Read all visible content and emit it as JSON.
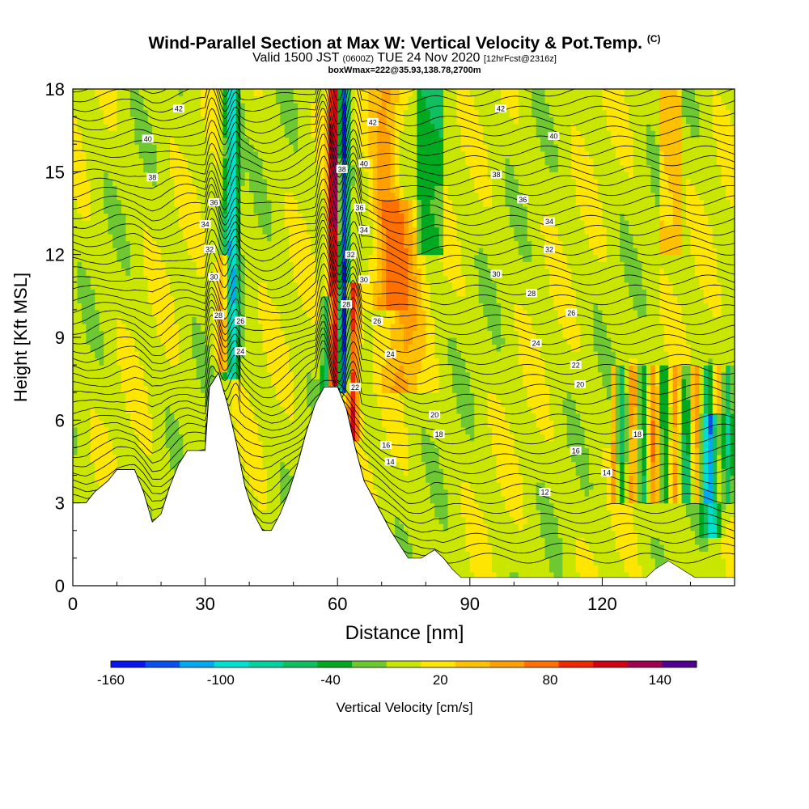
{
  "title": {
    "main": "Wind-Parallel Section at Max W: Vertical Velocity & Pot.Temp.",
    "copyright": "(C)",
    "valid_prefix": "Valid 1500 JST",
    "valid_utc": "(0600Z)",
    "valid_date": "TUE 24 Nov 2020",
    "forecast": "[12hrFcst@2316z]",
    "box_info": "boxWmax=222@35.93,138.78,2700m"
  },
  "chart_data": {
    "type": "heatmap",
    "xlabel": "Distance [nm]",
    "ylabel": "Height [Kft MSL]",
    "xlim": [
      0,
      150
    ],
    "ylim": [
      0,
      18
    ],
    "xticks": [
      "0",
      "30",
      "60",
      "90",
      "120"
    ],
    "xtick_values": [
      0,
      30,
      60,
      90,
      120
    ],
    "yticks": [
      "0",
      "3",
      "6",
      "9",
      "12",
      "15",
      "18"
    ],
    "ytick_values": [
      0,
      3,
      6,
      9,
      12,
      15,
      18
    ],
    "colorbar": {
      "label": "Vertical Velocity [cm/s]",
      "tick_labels": [
        "-160",
        "-100",
        "-40",
        "20",
        "80",
        "140"
      ],
      "tick_values": [
        -160,
        -100,
        -40,
        20,
        80,
        140
      ],
      "levels": [
        -160,
        -140,
        -120,
        -100,
        -80,
        -60,
        -40,
        -20,
        0,
        20,
        40,
        60,
        80,
        100,
        120,
        140,
        160
      ],
      "colors": [
        "#0a14f0",
        "#0a50f0",
        "#00aaf0",
        "#00e0d0",
        "#00d2a0",
        "#10c060",
        "#00aa20",
        "#6ec832",
        "#c8e600",
        "#ffe600",
        "#ffc000",
        "#ffa000",
        "#ff7000",
        "#f02800",
        "#d20014",
        "#a00050",
        "#500090"
      ]
    },
    "terrain": [
      [
        0,
        3.0
      ],
      [
        3,
        3.0
      ],
      [
        5,
        3.4
      ],
      [
        8,
        3.8
      ],
      [
        10,
        4.2
      ],
      [
        14,
        4.2
      ],
      [
        16,
        3.4
      ],
      [
        18,
        2.3
      ],
      [
        20,
        2.6
      ],
      [
        22,
        3.6
      ],
      [
        24,
        4.4
      ],
      [
        26,
        4.9
      ],
      [
        30,
        4.9
      ],
      [
        31,
        7.2
      ],
      [
        33,
        7.7
      ],
      [
        35,
        6.6
      ],
      [
        37,
        5.2
      ],
      [
        39,
        3.6
      ],
      [
        41,
        2.6
      ],
      [
        43,
        2.0
      ],
      [
        45,
        2.0
      ],
      [
        47,
        2.6
      ],
      [
        49,
        3.4
      ],
      [
        51,
        4.4
      ],
      [
        53,
        5.6
      ],
      [
        55,
        6.6
      ],
      [
        57,
        7.2
      ],
      [
        60,
        7.2
      ],
      [
        62,
        6.4
      ],
      [
        64,
        5.0
      ],
      [
        66,
        3.8
      ],
      [
        68,
        3.2
      ],
      [
        70,
        2.6
      ],
      [
        72,
        2.0
      ],
      [
        74,
        1.5
      ],
      [
        76,
        1.0
      ],
      [
        79,
        1.0
      ],
      [
        82,
        1.3
      ],
      [
        84,
        1.0
      ],
      [
        86,
        0.6
      ],
      [
        88,
        0.3
      ],
      [
        110,
        0.3
      ],
      [
        120,
        0.3
      ],
      [
        130,
        0.3
      ],
      [
        132,
        0.6
      ],
      [
        135,
        0.9
      ],
      [
        138,
        0.6
      ],
      [
        141,
        0.3
      ],
      [
        150,
        0.3
      ]
    ],
    "isentropes_K_offset": [
      12,
      14,
      16,
      18,
      20,
      22,
      24,
      26,
      28,
      30,
      32,
      34,
      36,
      38,
      40,
      42
    ],
    "isentrope_labels": [
      {
        "text": "42",
        "x": 24,
        "y": 17.3
      },
      {
        "text": "40",
        "x": 17,
        "y": 16.2
      },
      {
        "text": "38",
        "x": 18,
        "y": 14.8
      },
      {
        "text": "36",
        "x": 32,
        "y": 13.9
      },
      {
        "text": "34",
        "x": 30,
        "y": 13.1
      },
      {
        "text": "32",
        "x": 31,
        "y": 12.2
      },
      {
        "text": "30",
        "x": 32,
        "y": 11.2
      },
      {
        "text": "28",
        "x": 33,
        "y": 9.8
      },
      {
        "text": "26",
        "x": 38,
        "y": 9.6
      },
      {
        "text": "24",
        "x": 38,
        "y": 8.5
      },
      {
        "text": "42",
        "x": 68,
        "y": 16.8
      },
      {
        "text": "40",
        "x": 66,
        "y": 15.3
      },
      {
        "text": "38",
        "x": 61,
        "y": 15.1
      },
      {
        "text": "36",
        "x": 65,
        "y": 13.7
      },
      {
        "text": "34",
        "x": 66,
        "y": 12.9
      },
      {
        "text": "32",
        "x": 63,
        "y": 12.0
      },
      {
        "text": "30",
        "x": 66,
        "y": 11.1
      },
      {
        "text": "28",
        "x": 62,
        "y": 10.2
      },
      {
        "text": "26",
        "x": 69,
        "y": 9.6
      },
      {
        "text": "24",
        "x": 72,
        "y": 8.4
      },
      {
        "text": "22",
        "x": 64,
        "y": 7.2
      },
      {
        "text": "20",
        "x": 82,
        "y": 6.2
      },
      {
        "text": "18",
        "x": 83,
        "y": 5.5
      },
      {
        "text": "16",
        "x": 71,
        "y": 5.1
      },
      {
        "text": "14",
        "x": 72,
        "y": 4.5
      },
      {
        "text": "42",
        "x": 97,
        "y": 17.3
      },
      {
        "text": "40",
        "x": 109,
        "y": 16.3
      },
      {
        "text": "38",
        "x": 96,
        "y": 14.9
      },
      {
        "text": "36",
        "x": 102,
        "y": 14.0
      },
      {
        "text": "34",
        "x": 108,
        "y": 13.2
      },
      {
        "text": "32",
        "x": 108,
        "y": 12.2
      },
      {
        "text": "30",
        "x": 96,
        "y": 11.3
      },
      {
        "text": "28",
        "x": 104,
        "y": 10.6
      },
      {
        "text": "26",
        "x": 113,
        "y": 9.9
      },
      {
        "text": "24",
        "x": 105,
        "y": 8.8
      },
      {
        "text": "22",
        "x": 114,
        "y": 8.0
      },
      {
        "text": "20",
        "x": 115,
        "y": 7.3
      },
      {
        "text": "18",
        "x": 128,
        "y": 5.5
      },
      {
        "text": "16",
        "x": 114,
        "y": 4.9
      },
      {
        "text": "14",
        "x": 121,
        "y": 4.1
      },
      {
        "text": "12",
        "x": 107,
        "y": 3.4
      }
    ],
    "features": {
      "downdrafts": [
        {
          "x": 36,
          "width": 1.6,
          "ytop": 18,
          "ybot": 7.6,
          "w": -110
        },
        {
          "x": 61.4,
          "width": 1.2,
          "ytop": 18,
          "ybot": 7.0,
          "w": -160
        },
        {
          "x": 57.5,
          "width": 1.0,
          "ytop": 10.5,
          "ybot": 7.0,
          "w": -90
        },
        {
          "x": 145,
          "width": 2.0,
          "ytop": 6.2,
          "ybot": 1.8,
          "w": -100
        }
      ],
      "updrafts": [
        {
          "x": 59.2,
          "width": 1.3,
          "ytop": 18,
          "ybot": 7.2,
          "w": 140
        },
        {
          "x": 63.5,
          "width": 1.4,
          "ytop": 11,
          "ybot": 5.2,
          "w": 110
        },
        {
          "x": 34.2,
          "width": 1.3,
          "ytop": 12,
          "ybot": 7.8,
          "w": 80
        },
        {
          "x": 71,
          "width": 3.5,
          "ytop": 18,
          "ybot": 10,
          "w": 60
        },
        {
          "x": 75,
          "width": 4,
          "ytop": 14,
          "ybot": 7,
          "w": 50
        }
      ]
    }
  }
}
